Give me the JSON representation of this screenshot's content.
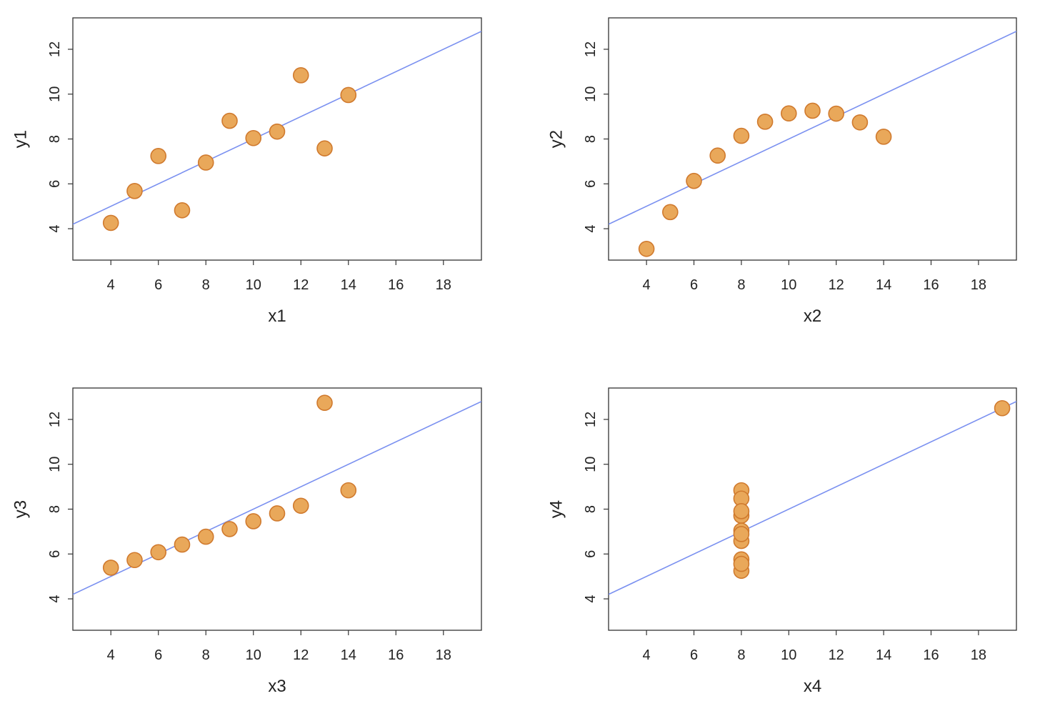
{
  "figure": {
    "background": "#ffffff"
  },
  "style": {
    "point_fill": "#e9a85a",
    "point_stroke": "#d07a2e",
    "line_color": "#7a90f0",
    "frame_color": "#333333"
  },
  "chart_data": [
    {
      "type": "scatter",
      "xlabel": "x1",
      "ylabel": "y1",
      "xlim": [
        2.4,
        19.6
      ],
      "ylim": [
        2.6,
        13.4
      ],
      "xticks": [
        4,
        6,
        8,
        10,
        12,
        14,
        16,
        18
      ],
      "yticks": [
        4,
        6,
        8,
        10,
        12
      ],
      "x": [
        10,
        8,
        13,
        9,
        11,
        14,
        6,
        4,
        12,
        7,
        5
      ],
      "y": [
        8.04,
        6.95,
        7.58,
        8.81,
        8.33,
        9.96,
        7.24,
        4.26,
        10.84,
        4.82,
        5.68
      ],
      "fit": {
        "intercept": 3.0,
        "slope": 0.5
      },
      "grid": false
    },
    {
      "type": "scatter",
      "xlabel": "x2",
      "ylabel": "y2",
      "xlim": [
        2.4,
        19.6
      ],
      "ylim": [
        2.6,
        13.4
      ],
      "xticks": [
        4,
        6,
        8,
        10,
        12,
        14,
        16,
        18
      ],
      "yticks": [
        4,
        6,
        8,
        10,
        12
      ],
      "x": [
        10,
        8,
        13,
        9,
        11,
        14,
        6,
        4,
        12,
        7,
        5
      ],
      "y": [
        9.14,
        8.14,
        8.74,
        8.77,
        9.26,
        8.1,
        6.13,
        3.1,
        9.13,
        7.26,
        4.74
      ],
      "fit": {
        "intercept": 3.0,
        "slope": 0.5
      },
      "grid": false
    },
    {
      "type": "scatter",
      "xlabel": "x3",
      "ylabel": "y3",
      "xlim": [
        2.4,
        19.6
      ],
      "ylim": [
        2.6,
        13.4
      ],
      "xticks": [
        4,
        6,
        8,
        10,
        12,
        14,
        16,
        18
      ],
      "yticks": [
        4,
        6,
        8,
        10,
        12
      ],
      "x": [
        10,
        8,
        13,
        9,
        11,
        14,
        6,
        4,
        12,
        7,
        5
      ],
      "y": [
        7.46,
        6.77,
        12.74,
        7.11,
        7.81,
        8.84,
        6.08,
        5.39,
        8.15,
        6.42,
        5.73
      ],
      "fit": {
        "intercept": 3.0,
        "slope": 0.5
      },
      "grid": false
    },
    {
      "type": "scatter",
      "xlabel": "x4",
      "ylabel": "y4",
      "xlim": [
        2.4,
        19.6
      ],
      "ylim": [
        2.6,
        13.4
      ],
      "xticks": [
        4,
        6,
        8,
        10,
        12,
        14,
        16,
        18
      ],
      "yticks": [
        4,
        6,
        8,
        10,
        12
      ],
      "x": [
        8,
        8,
        8,
        8,
        8,
        8,
        8,
        19,
        8,
        8,
        8
      ],
      "y": [
        6.58,
        5.76,
        7.71,
        8.84,
        8.47,
        7.04,
        5.25,
        12.5,
        5.56,
        7.91,
        6.89
      ],
      "fit": {
        "intercept": 3.0,
        "slope": 0.5
      },
      "grid": false
    }
  ]
}
